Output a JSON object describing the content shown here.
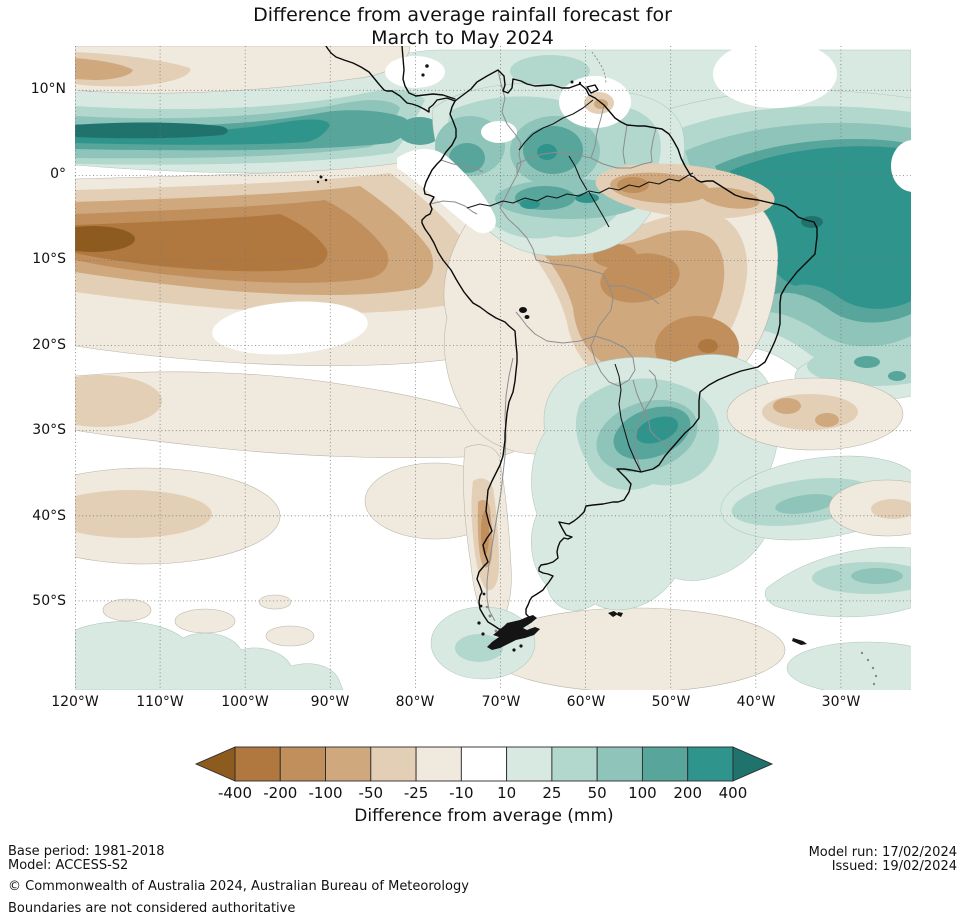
{
  "title": {
    "line1": "Difference from average rainfall forecast for",
    "line2": "March to May 2024"
  },
  "map": {
    "lat_ticks": [
      "10°N",
      "0°",
      "10°S",
      "20°S",
      "30°S",
      "40°S",
      "50°S"
    ],
    "lon_ticks": [
      "120°W",
      "110°W",
      "100°W",
      "90°W",
      "80°W",
      "70°W",
      "60°W",
      "50°W",
      "40°W",
      "30°W"
    ]
  },
  "colorbar": {
    "values": [
      -400,
      -200,
      -100,
      -50,
      -25,
      -10,
      10,
      25,
      50,
      100,
      200,
      400
    ],
    "tick_labels": [
      "-400",
      "-200",
      "-100",
      "-50",
      "-25",
      "-10",
      "10",
      "25",
      "50",
      "100",
      "200",
      "400"
    ],
    "caption": "Difference from average (mm)",
    "negative_colors": [
      "#8e5b1f",
      "#b0783f",
      "#c08f5c",
      "#cfa87e",
      "#e3cfb6",
      "#f0e9dd"
    ],
    "positive_colors": [
      "#d8e9e2",
      "#b2d7cd",
      "#8ec4b9",
      "#57a59b",
      "#2f948b",
      "#20736d"
    ],
    "white": "#ffffff"
  },
  "footer": {
    "base_period": "Base period: 1981-2018",
    "model": "Model: ACCESS-S2",
    "copyright": "© Commonwealth of Australia 2024, Australian Bureau of Meteorology",
    "boundaries_note": "Boundaries are not considered authoritative",
    "model_run": "Model run: 17/02/2024",
    "issued": "Issued: 19/02/2024"
  }
}
